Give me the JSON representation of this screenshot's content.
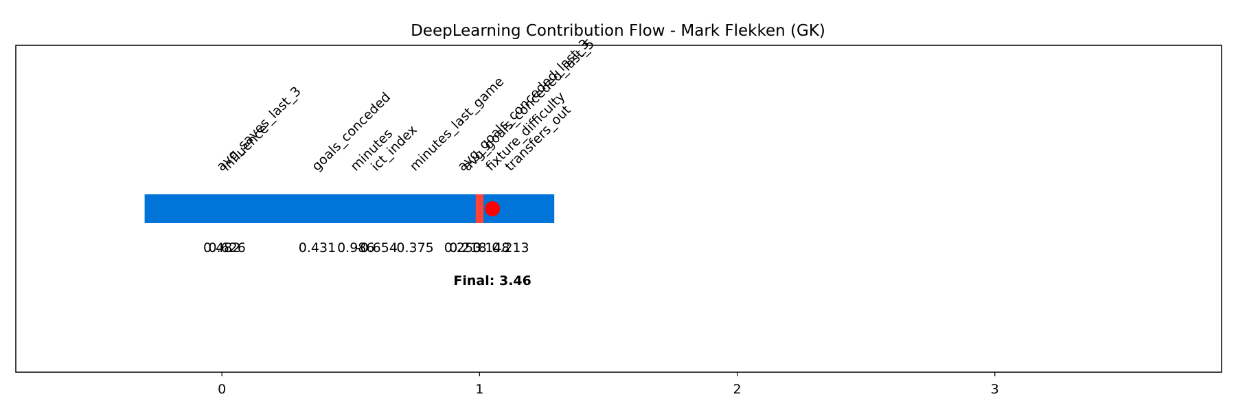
{
  "chart_data": {
    "type": "bar",
    "title": "DeepLearning Contribution Flow - Mark Flekken (GK)",
    "xlabel": "",
    "ylabel": "",
    "xlim": [
      -0.8,
      3.88
    ],
    "xticks": [
      0,
      1,
      2,
      3
    ],
    "grid": false,
    "bar": {
      "start": -0.3,
      "end": 1.29,
      "color": "#0074D9"
    },
    "highlight": {
      "start": 0.985,
      "end": 1.015,
      "color": "#FF4136"
    },
    "marker": {
      "x": 1.05,
      "color": "#FF0000"
    },
    "contributions": [
      {
        "feature": "avg_saves_last_3",
        "x": 0.0,
        "value": "0.482"
      },
      {
        "feature": "influence",
        "x": 0.02,
        "value": "0.626"
      },
      {
        "feature": "goals_conceded",
        "x": 0.37,
        "value": "0.431"
      },
      {
        "feature": "minutes",
        "x": 0.52,
        "value": "0.986"
      },
      {
        "feature": "ict_index",
        "x": 0.6,
        "value": "-0.654"
      },
      {
        "feature": "minutes_last_game",
        "x": 0.75,
        "value": "0.375"
      },
      {
        "feature": "avg_goals_conceded_last_3",
        "x": 0.935,
        "value": "0.253"
      },
      {
        "feature": "avg_goals_conceded_last_5",
        "x": 0.955,
        "value": "0.218"
      },
      {
        "feature": "fixture_difficulty",
        "x": 1.045,
        "value": "0.148"
      },
      {
        "feature": "transfers_out",
        "x": 1.12,
        "value": "0.213"
      }
    ],
    "final_label": "Final: 3.46",
    "final_x": 1.05
  }
}
